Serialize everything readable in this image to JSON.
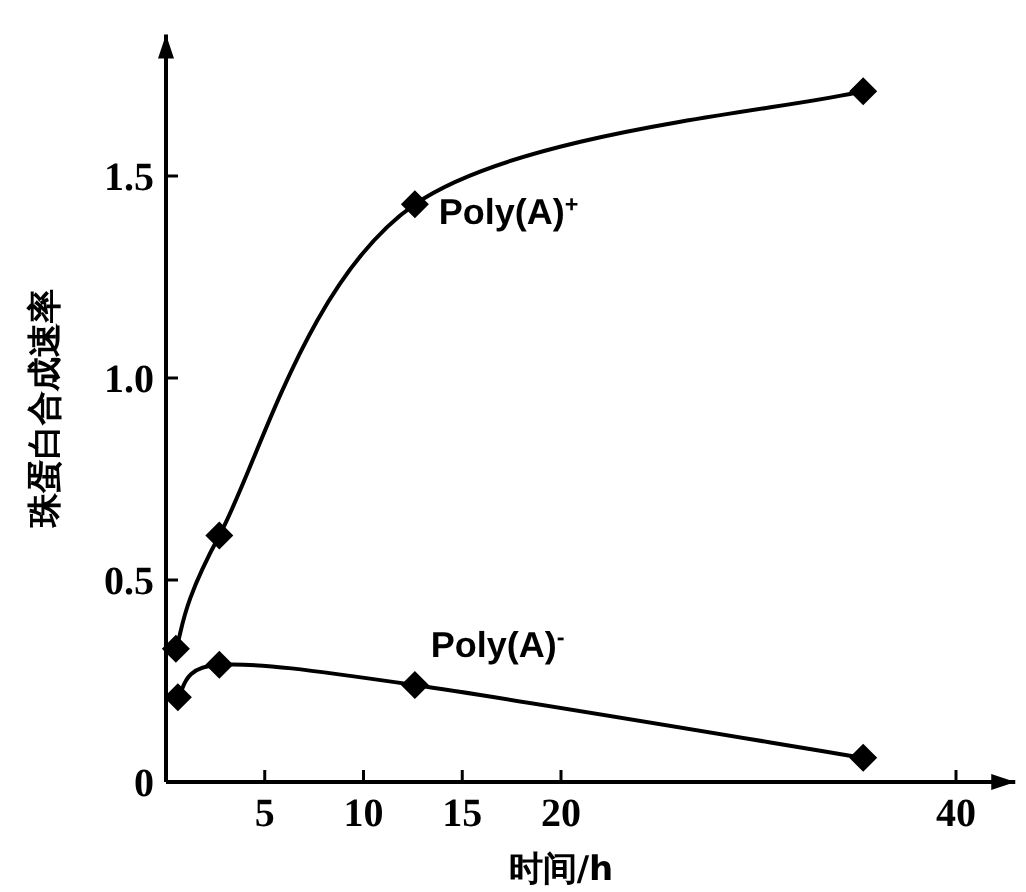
{
  "chart_data": {
    "type": "line",
    "xlabel": "时间/h",
    "ylabel": "珠蛋白合成速率",
    "xlim": [
      0,
      43
    ],
    "ylim": [
      0,
      1.85
    ],
    "xticks": [
      5,
      10,
      15,
      20,
      40
    ],
    "yticks": [
      0,
      0.5,
      {
        "value": 1.0,
        "label": "1.0"
      },
      1.5
    ],
    "marker": "diamond",
    "series": [
      {
        "name": "Poly(A)$^{+}$",
        "color": "#000000",
        "x": [
          0.5,
          2.7,
          12.6,
          35.3
        ],
        "values": [
          0.33,
          0.61,
          1.43,
          1.71
        ]
      },
      {
        "name": "Poly(A)$^{-}$",
        "color": "#000000",
        "x": [
          0.6,
          2.7,
          12.6,
          35.3
        ],
        "values": [
          0.21,
          0.29,
          0.24,
          0.06
        ]
      }
    ]
  }
}
